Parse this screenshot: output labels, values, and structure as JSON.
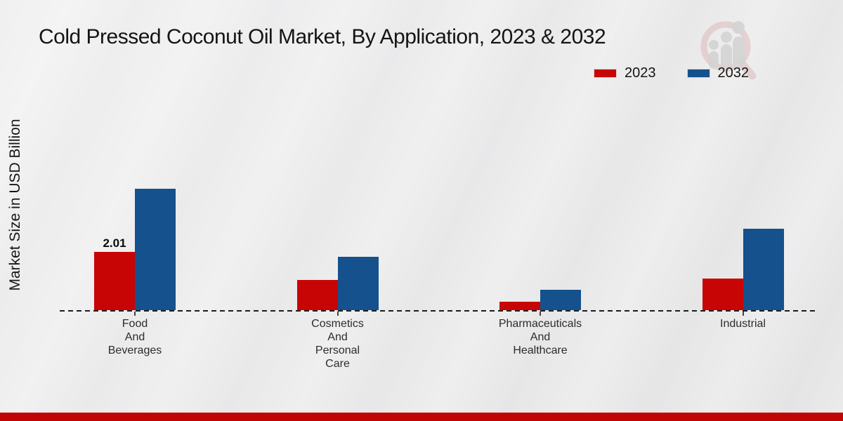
{
  "header": {
    "title": "Cold Pressed Coconut Oil Market, By Application, 2023 & 2032"
  },
  "axes": {
    "y_label": "Market Size in USD Billion"
  },
  "legend": {
    "items": [
      {
        "label": "2023",
        "color": "#c80505"
      },
      {
        "label": "2032",
        "color": "#15518c"
      }
    ]
  },
  "chart_data": {
    "type": "bar",
    "title": "Cold Pressed Coconut Oil Market, By Application, 2023 & 2032",
    "xlabel": "",
    "ylabel": "Market Size in USD Billion",
    "categories": [
      "Food And Beverages",
      "Cosmetics And Personal Care",
      "Pharmaceuticals And Healthcare",
      "Industrial"
    ],
    "category_label_lines": [
      [
        "Food",
        "And",
        "Beverages"
      ],
      [
        "Cosmetics",
        "And",
        "Personal",
        "Care"
      ],
      [
        "Pharmaceuticals",
        "And",
        "Healthcare"
      ],
      [
        "Industrial"
      ]
    ],
    "series": [
      {
        "name": "2023",
        "color": "#c80505",
        "values": [
          2.01,
          1.05,
          0.3,
          1.1
        ]
      },
      {
        "name": "2032",
        "color": "#15518c",
        "values": [
          4.2,
          1.85,
          0.7,
          2.8
        ]
      }
    ],
    "data_labels": [
      {
        "series_index": 0,
        "category_index": 0,
        "text": "2.01"
      }
    ],
    "ylim": [
      0,
      4.6
    ],
    "grid": false,
    "legend_position": "top-right",
    "baseline_style": "dashed"
  },
  "branding": {
    "logo_name": "market-research-magnifier-logo",
    "footer_color": "#c10404"
  }
}
